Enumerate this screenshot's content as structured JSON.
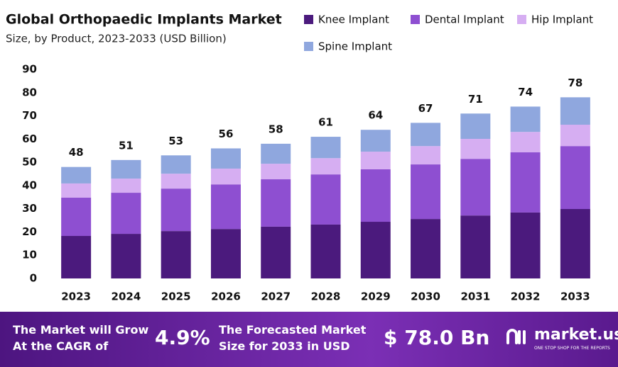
{
  "chart_data": {
    "type": "stacked-bar",
    "title": "Global Orthopaedic Implants Market",
    "subtitle": "Size, by Product, 2023-2033 (USD Billion)",
    "categories": [
      "2023",
      "2024",
      "2025",
      "2026",
      "2027",
      "2028",
      "2029",
      "2030",
      "2031",
      "2032",
      "2033"
    ],
    "series": [
      {
        "name": "Knee Implant",
        "color": "#4b1a7d",
        "values": [
          18.3,
          19.2,
          20.4,
          21.3,
          22.3,
          23.2,
          24.4,
          25.6,
          27.1,
          28.4,
          29.9
        ]
      },
      {
        "name": "Dental Implant",
        "color": "#8e4fd1",
        "values": [
          16.5,
          17.7,
          18.3,
          19.2,
          20.4,
          21.6,
          22.6,
          23.5,
          24.4,
          25.9,
          27.1
        ]
      },
      {
        "name": "Hip Implant",
        "color": "#d6aef2",
        "values": [
          6.1,
          6.1,
          6.4,
          6.8,
          6.7,
          7.0,
          7.6,
          7.9,
          8.6,
          8.8,
          9.2
        ]
      },
      {
        "name": "Spine Implant",
        "color": "#8fa7de",
        "values": [
          7.1,
          8.0,
          7.9,
          8.7,
          8.6,
          9.2,
          9.4,
          10.0,
          10.9,
          10.9,
          11.8
        ]
      }
    ],
    "totals": [
      48,
      51,
      53,
      56,
      58,
      61,
      64,
      67,
      71,
      74,
      78
    ],
    "ylim": [
      0,
      90
    ],
    "yticks": [
      0,
      10,
      20,
      30,
      40,
      50,
      60,
      70,
      80,
      90
    ]
  },
  "banner": {
    "cagr_text": "The Market will Grow At the CAGR of",
    "cagr": "4.9%",
    "forecast_text": "The Forecasted Market Size for 2033 in USD",
    "forecast": "$ 78.0 Bn",
    "brand": "market.us",
    "tagline": "ONE STOP SHOP FOR THE REPORTS"
  }
}
